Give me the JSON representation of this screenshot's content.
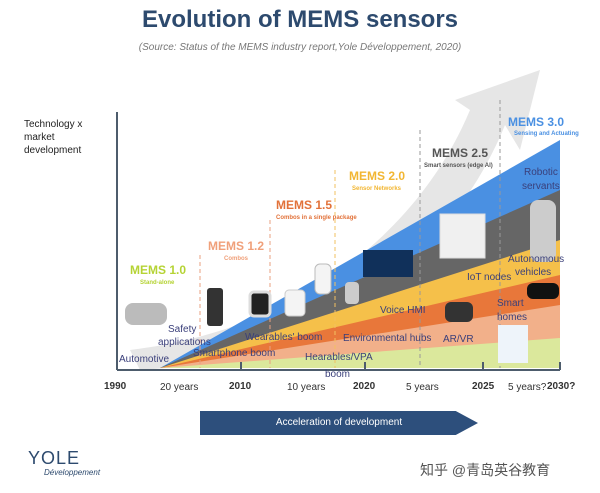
{
  "title": "Evolution of MEMS sensors",
  "source": "(Source: Status of the MEMS industry report,Yole Développement, 2020)",
  "y_axis_label": "Technology x market development",
  "phases": [
    {
      "name": "MEMS 1.0",
      "sub": "Stand-alone",
      "color": "#b5d334"
    },
    {
      "name": "MEMS 1.2",
      "sub": "Combos",
      "color": "#f0a07a"
    },
    {
      "name": "MEMS 1.5",
      "sub": "Combos in a single package",
      "color": "#e2723a"
    },
    {
      "name": "MEMS 2.0",
      "sub": "Sensor Networks",
      "color": "#f2b632"
    },
    {
      "name": "MEMS 2.5",
      "sub": "Smart sensors (edge AI)",
      "color": "#555555"
    },
    {
      "name": "MEMS 3.0",
      "sub": "Sensing and Actuating",
      "color": "#4a90e2"
    }
  ],
  "labels": {
    "automotive": "Automotive",
    "safety1": "Safety",
    "safety2": "applications",
    "smartphone": "Smartphone boom",
    "wearables": "Wearables' boom",
    "hearables1": "Hearables/VPA",
    "hearables2": "boom",
    "env": "Environmental hubs",
    "voice": "Voice HMI",
    "arvr": "AR/VR",
    "iot": "IoT nodes",
    "smart1": "Smart",
    "smart2": "homes",
    "auto1": "Autonomous",
    "auto2": "vehicles",
    "robot1": "Robotic",
    "robot2": "servants"
  },
  "ticks": [
    "1990",
    "2010",
    "2020",
    "2025",
    "2030?"
  ],
  "durations": [
    "20 years",
    "10 years",
    "5 years",
    "5 years?"
  ],
  "acceleration": "Acceleration of development",
  "logo": "YOLE",
  "logo_sub": "Développement",
  "watermark": "知乎 @青岛英谷教育"
}
